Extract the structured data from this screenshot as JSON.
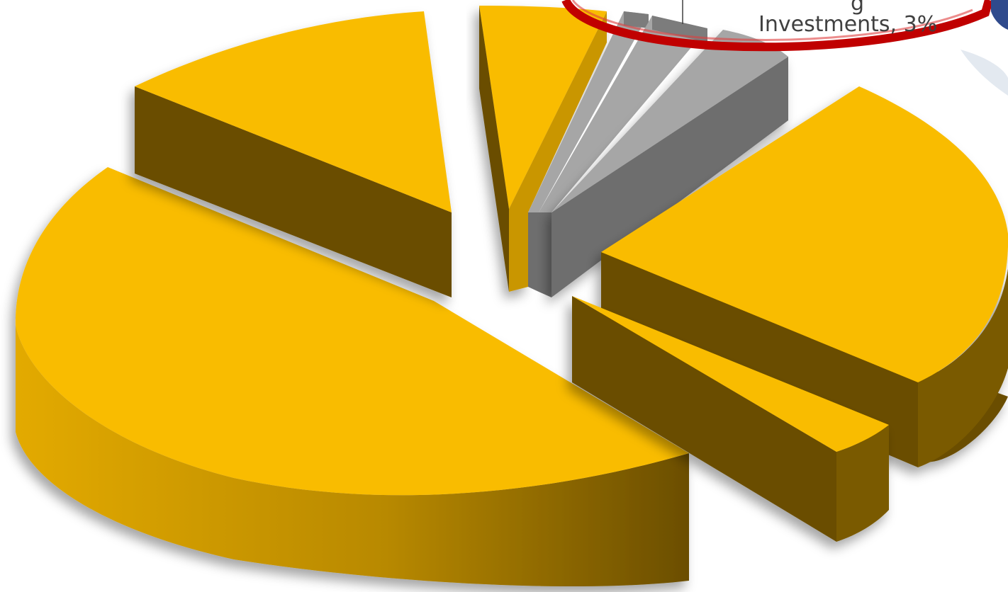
{
  "chart_data": {
    "type": "pie",
    "style": "3d-exploded",
    "slices": [
      {
        "name": "",
        "value": 35,
        "color": "#F9BC00",
        "exploded": false
      },
      {
        "name": "",
        "value": 13,
        "color": "#F9BC00",
        "exploded": true
      },
      {
        "name": "",
        "value": 4,
        "color": "#F9BC00",
        "exploded": true
      },
      {
        "name": "",
        "value": 1,
        "color": "#A6A6A6",
        "exploded": true
      },
      {
        "name": "",
        "value": 2,
        "color": "#A6A6A6",
        "exploded": true
      },
      {
        "name": "",
        "value": 3,
        "color": "#A6A6A6",
        "exploded": true
      },
      {
        "name": "",
        "value": 26,
        "color": "#F9BC00",
        "exploded": true
      },
      {
        "name": "",
        "value": 4,
        "color": "#F9BC00",
        "exploded": true
      }
    ],
    "callout": {
      "partial_text": "g",
      "text": "Investments, 3%",
      "ring_color": "#C00000"
    },
    "colors": {
      "gold_top": "#F9BC00",
      "gold_side_dark": "#6B4E00",
      "gold_side_mid": "#C99600",
      "grey_top": "#A6A6A6",
      "grey_side": "#6E6E6E"
    }
  }
}
